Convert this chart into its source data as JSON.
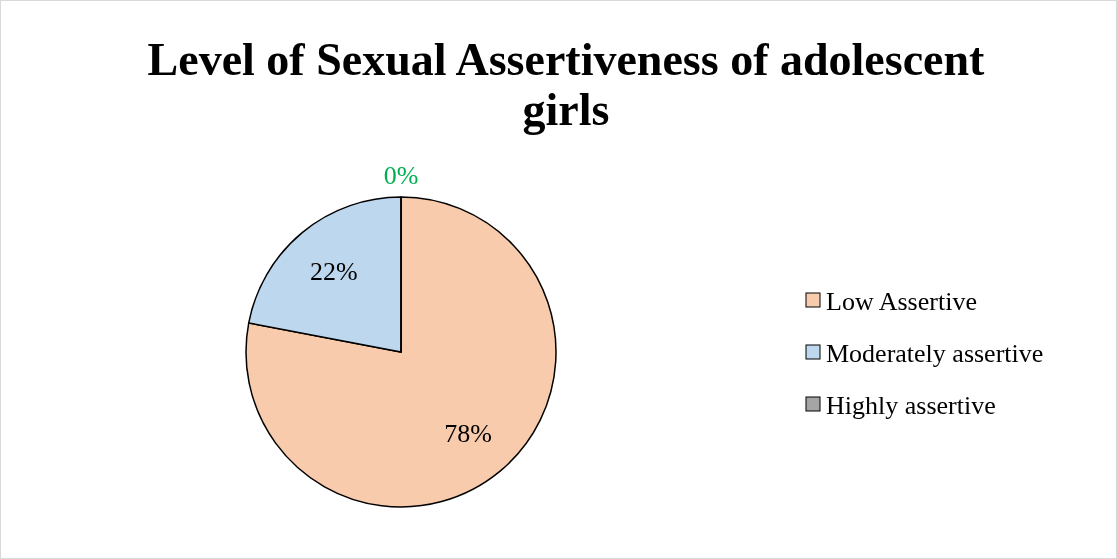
{
  "chart_data": {
    "type": "pie",
    "title": "Level of Sexual Assertiveness of adolescent girls",
    "categories": [
      "Low Assertive",
      "Moderately assertive",
      "Highly assertive"
    ],
    "values": [
      78,
      22,
      0
    ],
    "colors": [
      "#f8cbad",
      "#bdd7ee",
      "#a5a5a5"
    ],
    "value_labels": [
      "78%",
      "22%",
      "0%"
    ],
    "legend": "right"
  }
}
